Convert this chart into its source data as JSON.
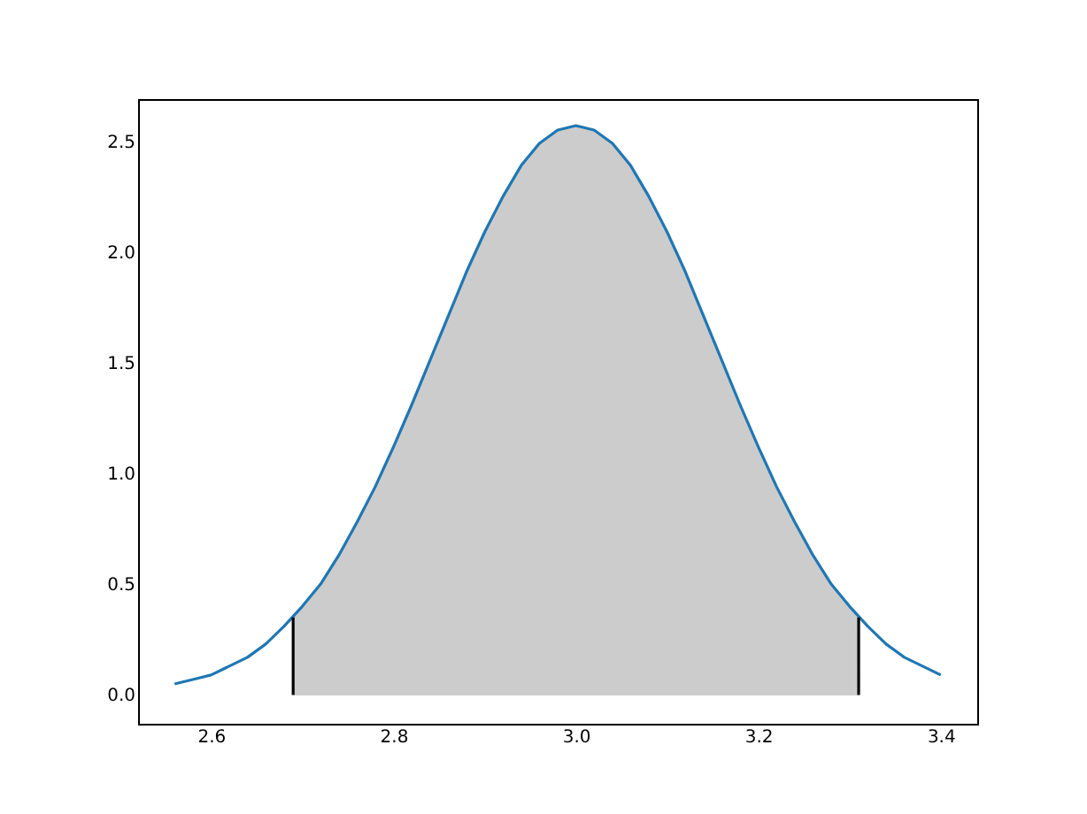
{
  "chart_data": {
    "type": "line",
    "xlim": [
      2.52,
      3.44
    ],
    "ylim": [
      -0.13,
      2.69
    ],
    "xticks": [
      2.6,
      2.8,
      {
        "value": 3.0,
        "label": "3.0"
      },
      3.2,
      3.4
    ],
    "yticks": [
      {
        "value": 0,
        "label": "0.0"
      },
      0.5,
      {
        "value": 1,
        "label": "1.0"
      },
      1.5,
      {
        "value": 2,
        "label": "2.0"
      },
      2.5
    ],
    "grid": false,
    "series": [
      {
        "type": "area",
        "color": "#cccccc",
        "x": [
          2.69,
          2.7,
          2.72,
          2.74,
          2.76,
          2.78,
          2.8,
          2.82,
          2.84,
          2.86,
          2.88,
          2.9,
          2.92,
          2.94,
          2.96,
          2.98,
          3.0,
          3.02,
          3.04,
          3.06,
          3.08,
          3.1,
          3.12,
          3.14,
          3.16,
          3.18,
          3.2,
          3.22,
          3.24,
          3.26,
          3.28,
          3.3,
          3.31
        ],
        "values": [
          0.35,
          0.4,
          0.5,
          0.63,
          0.78,
          0.94,
          1.12,
          1.31,
          1.51,
          1.71,
          1.91,
          2.09,
          2.25,
          2.39,
          2.49,
          2.55,
          2.57,
          2.55,
          2.49,
          2.39,
          2.25,
          2.09,
          1.91,
          1.71,
          1.51,
          1.31,
          1.12,
          0.94,
          0.78,
          0.63,
          0.5,
          0.4,
          0.35
        ]
      },
      {
        "color": "#1f77b4",
        "x": [
          2.56,
          2.58,
          2.6,
          2.62,
          2.64,
          2.66,
          2.68,
          2.7,
          2.72,
          2.74,
          2.76,
          2.78,
          2.8,
          2.82,
          2.84,
          2.86,
          2.88,
          2.9,
          2.92,
          2.94,
          2.96,
          2.98,
          3.0,
          3.02,
          3.04,
          3.06,
          3.08,
          3.1,
          3.12,
          3.14,
          3.16,
          3.18,
          3.2,
          3.22,
          3.24,
          3.26,
          3.28,
          3.3,
          3.32,
          3.34,
          3.36,
          3.38,
          3.4
        ],
        "values": [
          0.05,
          0.07,
          0.09,
          0.13,
          0.17,
          0.23,
          0.31,
          0.4,
          0.5,
          0.63,
          0.78,
          0.94,
          1.12,
          1.31,
          1.51,
          1.71,
          1.91,
          2.09,
          2.25,
          2.39,
          2.49,
          2.55,
          2.57,
          2.55,
          2.49,
          2.39,
          2.25,
          2.09,
          1.91,
          1.71,
          1.51,
          1.31,
          1.12,
          0.94,
          0.78,
          0.63,
          0.5,
          0.4,
          0.31,
          0.23,
          0.17,
          0.13,
          0.09
        ]
      },
      {
        "color": "#000000",
        "x": [
          2.69,
          2.69
        ],
        "values": [
          0,
          0.35
        ]
      },
      {
        "color": "#000000",
        "x": [
          3.31,
          3.31
        ],
        "values": [
          0,
          0.35
        ]
      }
    ]
  }
}
